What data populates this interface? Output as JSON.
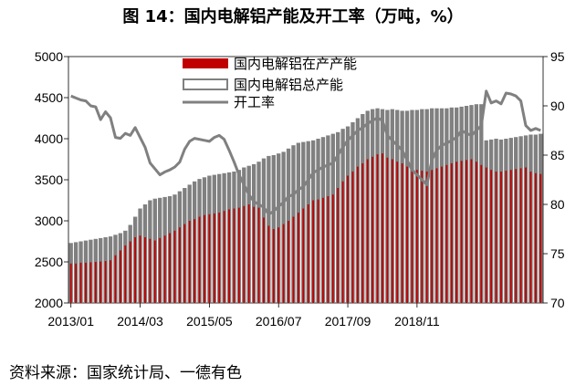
{
  "chart_data": {
    "type": "bar",
    "title": "图 14：国内电解铝产能及开工率（万吨，%）",
    "source": "资料来源：国家统计局、一德有色",
    "start_month": "2013-01",
    "x_tick_labels": [
      "2013/01",
      "2014/03",
      "2015/05",
      "2016/07",
      "2017/09",
      "2018/11"
    ],
    "y_left": {
      "min": 2000,
      "max": 5000,
      "ticks": [
        2000,
        2500,
        3000,
        3500,
        4000,
        4500,
        5000
      ]
    },
    "y_right": {
      "min": 70,
      "max": 95,
      "ticks": [
        70,
        75,
        80,
        85,
        90,
        95
      ]
    },
    "legend_position": "top-center",
    "grid": false,
    "series": [
      {
        "name": "国内电解铝总产能",
        "kind": "bar",
        "axis": "left",
        "color": "#808080",
        "values": [
          2730,
          2740,
          2750,
          2760,
          2770,
          2780,
          2790,
          2800,
          2810,
          2830,
          2850,
          2880,
          2950,
          3050,
          3150,
          3200,
          3250,
          3270,
          3280,
          3290,
          3300,
          3320,
          3360,
          3400,
          3440,
          3480,
          3510,
          3530,
          3550,
          3560,
          3570,
          3580,
          3590,
          3600,
          3620,
          3650,
          3670,
          3690,
          3720,
          3760,
          3790,
          3800,
          3820,
          3840,
          3880,
          3920,
          3950,
          3960,
          3970,
          3980,
          4000,
          4020,
          4040,
          4060,
          4080,
          4120,
          4150,
          4200,
          4250,
          4300,
          4340,
          4360,
          4370,
          4360,
          4350,
          4360,
          4350,
          4340,
          4340,
          4350,
          4350,
          4360,
          4360,
          4370,
          4370,
          4370,
          4370,
          4380,
          4380,
          4390,
          4400,
          4410,
          4420,
          4420,
          3980,
          3990,
          4000,
          3990,
          4000,
          4010,
          4020,
          4030,
          4040,
          4050,
          4050,
          4060
        ]
      },
      {
        "name": "国内电解铝在产产能",
        "kind": "bar",
        "axis": "left",
        "color": "#c00000",
        "values": [
          2480,
          2480,
          2490,
          2490,
          2495,
          2500,
          2505,
          2510,
          2520,
          2580,
          2640,
          2700,
          2750,
          2800,
          2820,
          2800,
          2780,
          2760,
          2790,
          2820,
          2850,
          2880,
          2920,
          2960,
          3000,
          3020,
          3050,
          3070,
          3080,
          3090,
          3100,
          3120,
          3140,
          3150,
          3160,
          3180,
          3200,
          3170,
          3160,
          3040,
          2940,
          2900,
          2920,
          2960,
          3000,
          3050,
          3100,
          3150,
          3200,
          3250,
          3260,
          3280,
          3300,
          3320,
          3400,
          3480,
          3550,
          3600,
          3660,
          3700,
          3750,
          3780,
          3810,
          3820,
          3770,
          3750,
          3720,
          3700,
          3660,
          3640,
          3620,
          3610,
          3600,
          3620,
          3640,
          3660,
          3680,
          3700,
          3720,
          3730,
          3740,
          3750,
          3720,
          3680,
          3650,
          3620,
          3600,
          3600,
          3610,
          3620,
          3630,
          3640,
          3650,
          3600,
          3580,
          3570
        ]
      },
      {
        "name": "开工率",
        "kind": "line",
        "axis": "right",
        "color": "#808080",
        "values": [
          91.0,
          90.8,
          90.6,
          90.5,
          90.0,
          89.9,
          88.6,
          89.4,
          88.8,
          86.8,
          86.7,
          87.2,
          87.0,
          87.8,
          86.8,
          85.8,
          84.2,
          83.6,
          83.0,
          83.3,
          83.5,
          83.8,
          84.3,
          85.6,
          86.4,
          86.7,
          86.6,
          86.5,
          86.4,
          86.8,
          87.0,
          86.6,
          85.5,
          84.3,
          83.0,
          82.0,
          81.0,
          80.3,
          80.0,
          79.7,
          79.0,
          79.3,
          79.8,
          80.2,
          80.8,
          81.0,
          81.5,
          81.8,
          82.5,
          83.2,
          83.5,
          83.8,
          84.0,
          84.2,
          85.0,
          85.8,
          86.5,
          87.0,
          87.5,
          87.8,
          88.2,
          88.5,
          88.8,
          88.5,
          87.0,
          86.5,
          86.0,
          85.5,
          84.5,
          83.5,
          83.0,
          82.5,
          82.0,
          84.5,
          85.5,
          86.0,
          86.2,
          86.5,
          86.8,
          87.5,
          87.2,
          87.0,
          87.5,
          88.0,
          91.5,
          90.3,
          90.5,
          90.2,
          91.3,
          91.2,
          91.0,
          90.5,
          88.0,
          87.5,
          87.7,
          87.5
        ]
      }
    ]
  }
}
